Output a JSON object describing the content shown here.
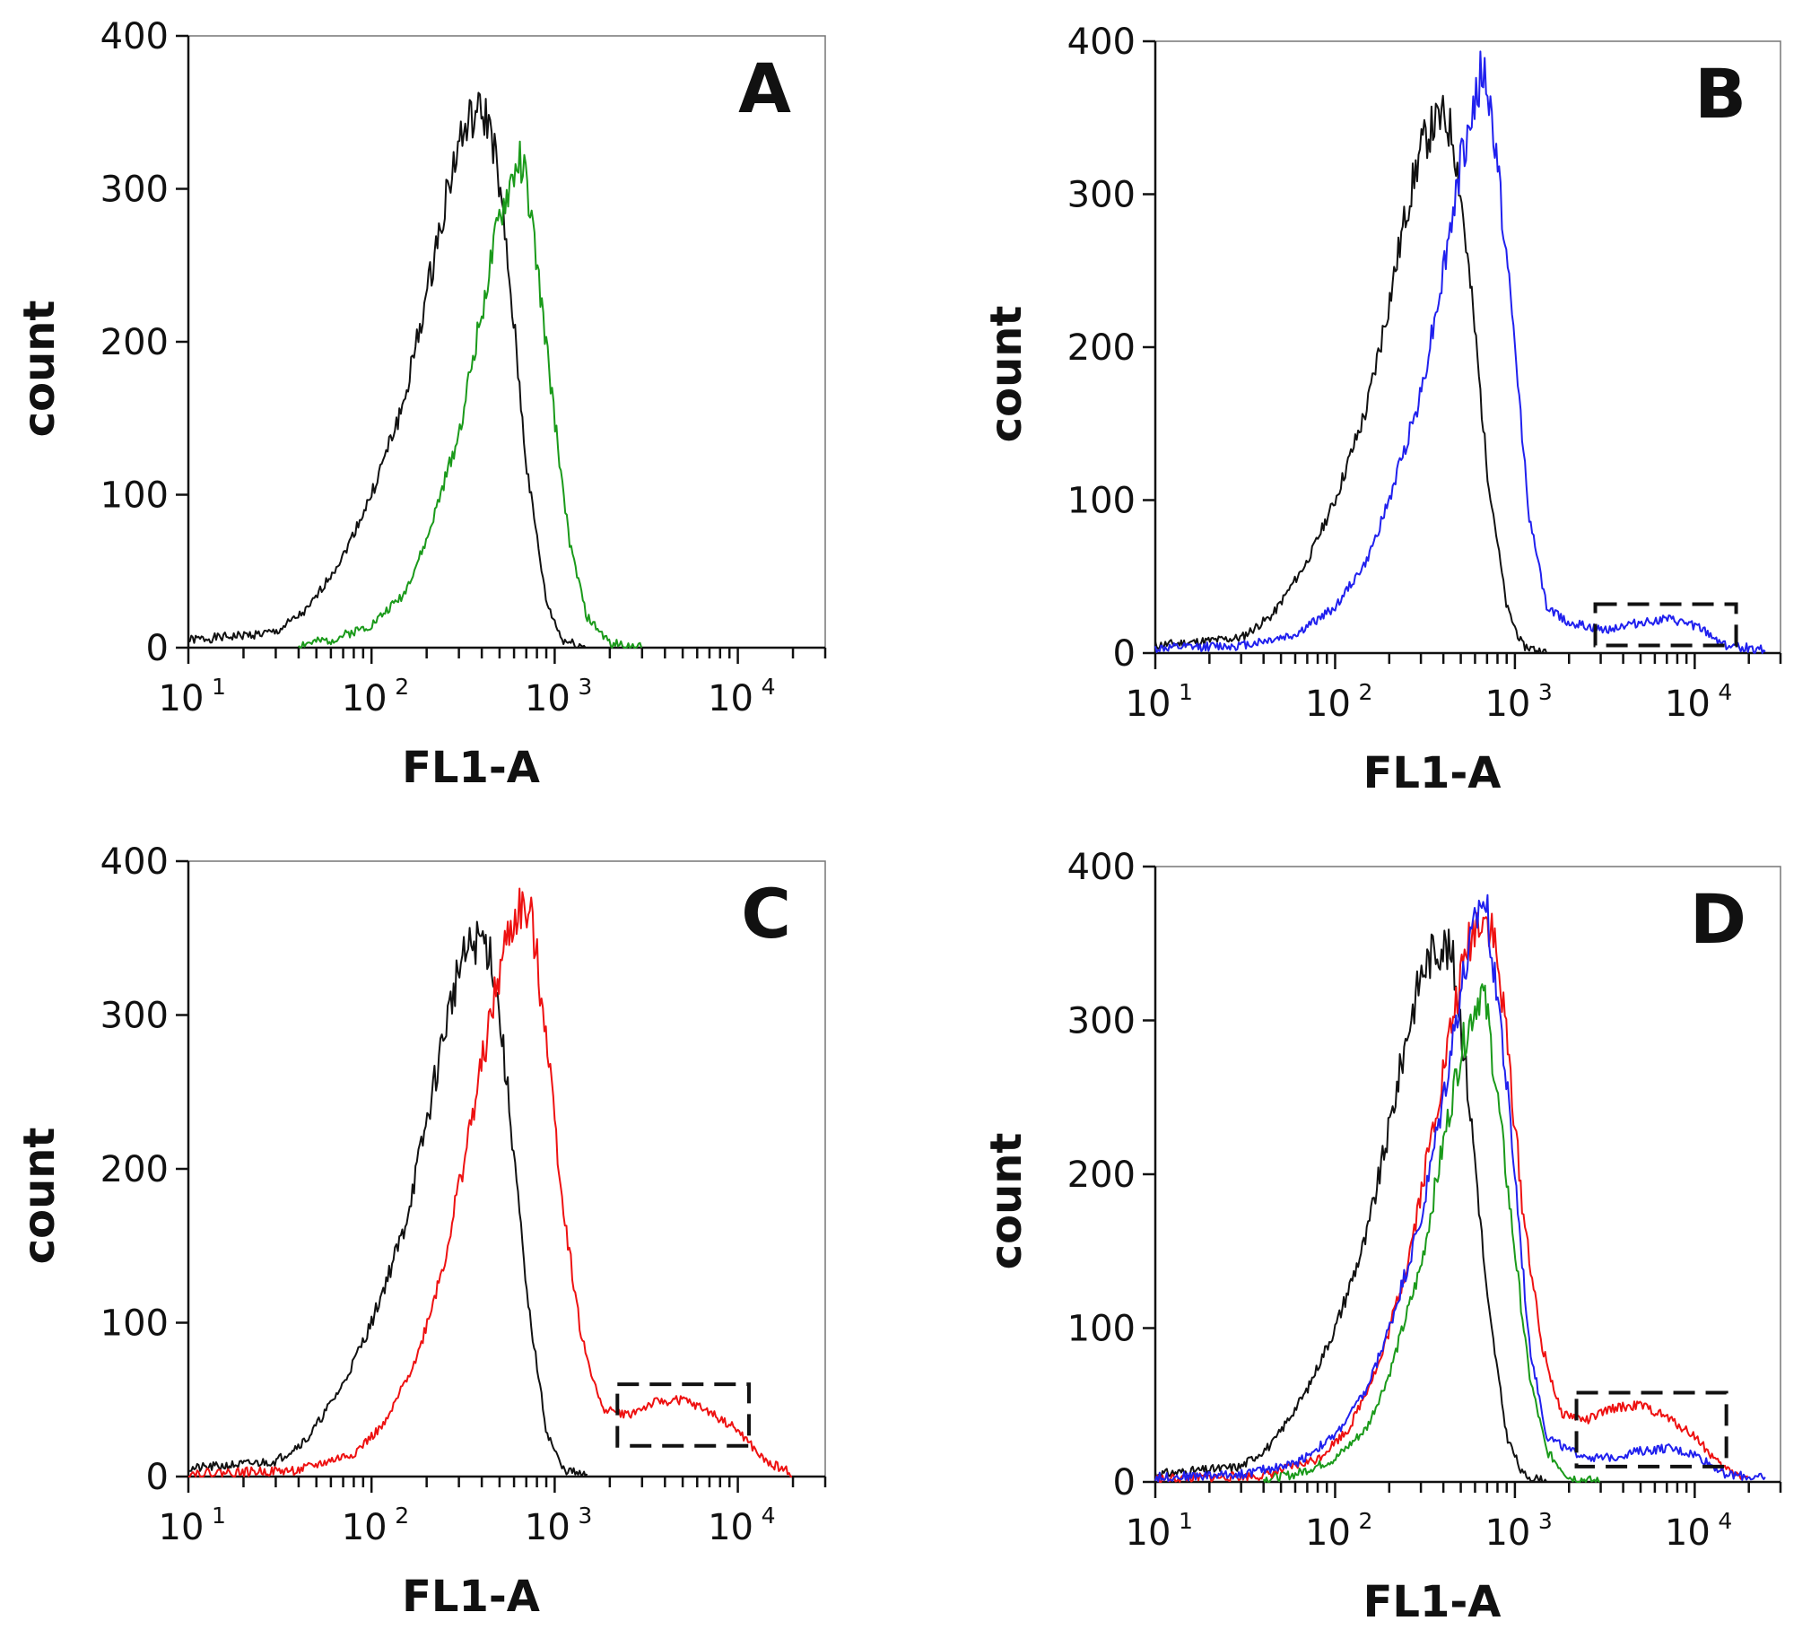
{
  "colors": {
    "control": "#111111",
    "green": "#1a9a1a",
    "blue": "#2020ee",
    "red": "#ee1111"
  },
  "chart_data": [
    {
      "type": "line",
      "panel": "A",
      "xlabel": "FL1-A",
      "ylabel": "count",
      "xscale": "log",
      "xlim": [
        10,
        30000
      ],
      "ylim": [
        0,
        400
      ],
      "yticks": [
        "0",
        "100",
        "200",
        "300",
        "400"
      ],
      "xticks": [
        {
          "base": "10",
          "exp": "1"
        },
        {
          "base": "10",
          "exp": "2"
        },
        {
          "base": "10",
          "exp": "3"
        },
        {
          "base": "10",
          "exp": "4"
        }
      ],
      "series": [
        {
          "name": "control",
          "color": "#111111",
          "x": [
            10,
            20,
            30,
            45,
            70,
            100,
            150,
            200,
            250,
            300,
            350,
            400,
            450,
            500,
            600,
            700,
            900,
            1100,
            1500
          ],
          "y": [
            5,
            8,
            10,
            25,
            60,
            100,
            160,
            230,
            290,
            330,
            345,
            350,
            340,
            300,
            210,
            120,
            30,
            5,
            0
          ]
        },
        {
          "name": "green",
          "color": "#1a9a1a",
          "x": [
            40,
            60,
            100,
            150,
            200,
            300,
            400,
            500,
            600,
            650,
            700,
            800,
            1000,
            1200,
            1500,
            2000,
            3000
          ],
          "y": [
            2,
            5,
            15,
            35,
            70,
            140,
            220,
            280,
            310,
            320,
            305,
            250,
            150,
            70,
            20,
            3,
            0
          ]
        }
      ]
    },
    {
      "type": "line",
      "panel": "B",
      "xlabel": "FL1-A",
      "ylabel": "count",
      "xscale": "log",
      "xlim": [
        10,
        30000
      ],
      "ylim": [
        0,
        400
      ],
      "yticks": [
        "0",
        "100",
        "200",
        "300",
        "400"
      ],
      "xticks": [
        {
          "base": "10",
          "exp": "1"
        },
        {
          "base": "10",
          "exp": "2"
        },
        {
          "base": "10",
          "exp": "3"
        },
        {
          "base": "10",
          "exp": "4"
        }
      ],
      "gate": {
        "x": [
          2800,
          17000
        ],
        "y": [
          5,
          32
        ]
      },
      "series": [
        {
          "name": "control",
          "color": "#111111",
          "x": [
            10,
            20,
            30,
            45,
            70,
            100,
            150,
            200,
            250,
            300,
            350,
            400,
            450,
            500,
            600,
            700,
            900,
            1100,
            1500
          ],
          "y": [
            5,
            8,
            10,
            25,
            60,
            100,
            160,
            230,
            290,
            330,
            345,
            350,
            340,
            300,
            210,
            120,
            30,
            5,
            0
          ]
        },
        {
          "name": "blue",
          "color": "#2020ee",
          "x": [
            10,
            30,
            60,
            100,
            150,
            200,
            300,
            400,
            500,
            600,
            650,
            700,
            800,
            1000,
            1200,
            1500,
            2000,
            3000,
            5000,
            7000,
            10000,
            15000,
            25000
          ],
          "y": [
            3,
            5,
            12,
            30,
            60,
            100,
            170,
            250,
            320,
            360,
            380,
            370,
            320,
            200,
            90,
            30,
            20,
            15,
            20,
            22,
            18,
            5,
            2
          ]
        }
      ]
    },
    {
      "type": "line",
      "panel": "C",
      "xlabel": "FL1-A",
      "ylabel": "count",
      "xscale": "log",
      "xlim": [
        10,
        30000
      ],
      "ylim": [
        0,
        400
      ],
      "yticks": [
        "0",
        "100",
        "200",
        "300",
        "400"
      ],
      "xticks": [
        {
          "base": "10",
          "exp": "1"
        },
        {
          "base": "10",
          "exp": "2"
        },
        {
          "base": "10",
          "exp": "3"
        },
        {
          "base": "10",
          "exp": "4"
        }
      ],
      "gate": {
        "x": [
          2200,
          11500
        ],
        "y": [
          20,
          60
        ]
      },
      "series": [
        {
          "name": "control",
          "color": "#111111",
          "x": [
            10,
            20,
            30,
            45,
            70,
            100,
            150,
            200,
            250,
            300,
            350,
            400,
            450,
            500,
            600,
            700,
            900,
            1100,
            1500
          ],
          "y": [
            5,
            8,
            10,
            25,
            60,
            100,
            160,
            230,
            290,
            330,
            345,
            350,
            340,
            300,
            210,
            120,
            30,
            5,
            0
          ]
        },
        {
          "name": "red",
          "color": "#ee1111",
          "x": [
            10,
            40,
            80,
            120,
            180,
            250,
            350,
            450,
            550,
            650,
            750,
            900,
            1100,
            1400,
            1800,
            2500,
            3500,
            5000,
            7000,
            10000,
            14000,
            20000
          ],
          "y": [
            2,
            4,
            15,
            35,
            80,
            140,
            230,
            300,
            350,
            370,
            360,
            290,
            180,
            90,
            45,
            40,
            48,
            50,
            42,
            30,
            10,
            2
          ]
        }
      ]
    },
    {
      "type": "line",
      "panel": "D",
      "xlabel": "FL1-A",
      "ylabel": "count",
      "xscale": "log",
      "xlim": [
        10,
        30000
      ],
      "ylim": [
        0,
        400
      ],
      "yticks": [
        "0",
        "100",
        "200",
        "300",
        "400"
      ],
      "xticks": [
        {
          "base": "10",
          "exp": "1"
        },
        {
          "base": "10",
          "exp": "2"
        },
        {
          "base": "10",
          "exp": "3"
        },
        {
          "base": "10",
          "exp": "4"
        }
      ],
      "gate": {
        "x": [
          2200,
          15000
        ],
        "y": [
          10,
          58
        ]
      },
      "series": [
        {
          "name": "control",
          "color": "#111111",
          "x": [
            10,
            20,
            30,
            45,
            70,
            100,
            150,
            200,
            250,
            300,
            350,
            400,
            450,
            500,
            600,
            700,
            900,
            1100,
            1500
          ],
          "y": [
            5,
            8,
            10,
            25,
            60,
            100,
            160,
            230,
            290,
            330,
            345,
            350,
            340,
            300,
            210,
            120,
            30,
            5,
            0
          ]
        },
        {
          "name": "green",
          "color": "#1a9a1a",
          "x": [
            40,
            60,
            100,
            150,
            200,
            300,
            400,
            500,
            600,
            650,
            700,
            800,
            1000,
            1200,
            1500,
            2000,
            3000
          ],
          "y": [
            2,
            5,
            15,
            35,
            70,
            140,
            220,
            280,
            310,
            320,
            305,
            250,
            150,
            70,
            20,
            3,
            0
          ]
        },
        {
          "name": "red",
          "color": "#ee1111",
          "x": [
            10,
            40,
            80,
            120,
            180,
            250,
            350,
            450,
            550,
            650,
            750,
            900,
            1100,
            1400,
            1800,
            2500,
            3500,
            5000,
            7000,
            10000,
            14000,
            20000
          ],
          "y": [
            2,
            4,
            15,
            35,
            80,
            140,
            230,
            300,
            350,
            370,
            360,
            290,
            180,
            90,
            45,
            40,
            48,
            50,
            42,
            30,
            10,
            2
          ]
        },
        {
          "name": "blue",
          "color": "#2020ee",
          "x": [
            10,
            30,
            60,
            100,
            150,
            200,
            300,
            400,
            500,
            600,
            650,
            700,
            800,
            1000,
            1200,
            1500,
            2000,
            3000,
            5000,
            7000,
            10000,
            15000,
            25000
          ],
          "y": [
            3,
            5,
            12,
            30,
            60,
            100,
            170,
            250,
            320,
            360,
            380,
            370,
            320,
            200,
            90,
            30,
            20,
            15,
            20,
            22,
            18,
            5,
            2
          ]
        }
      ]
    }
  ]
}
